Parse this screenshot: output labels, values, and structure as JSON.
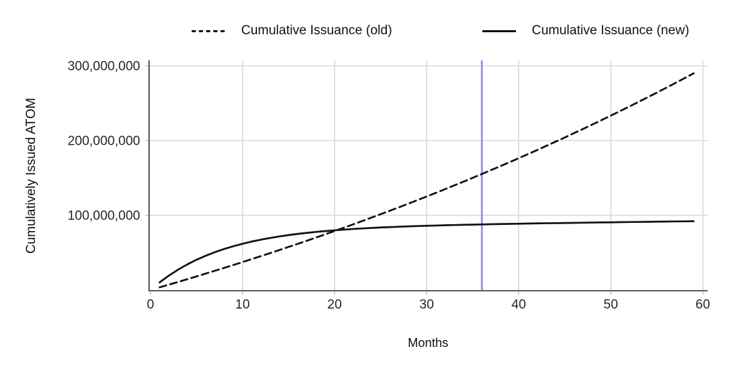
{
  "colors": {
    "background": "#ffffff",
    "line": "#111111",
    "grid": "#d8d8d8",
    "spine": "#444444",
    "tick": "#c9c9c9",
    "text": "#262626",
    "milestone_line": "#a294e8"
  },
  "chart_data": {
    "type": "line",
    "title": "",
    "xlabel": "Months",
    "ylabel": "Cumulatively Issued ATOM",
    "unit": "ATOM",
    "values_unit": "million ATOM",
    "grid": true,
    "legend_position": "top",
    "x_ticks": [
      0,
      10,
      20,
      30,
      40,
      50,
      60
    ],
    "y_ticks": [
      100000000,
      200000000,
      300000000
    ],
    "xlim": [
      0,
      60.6
    ],
    "ylim": [
      0,
      307000000
    ],
    "x": [
      1,
      2,
      3,
      4,
      5,
      6,
      7,
      8,
      9,
      10,
      11,
      12,
      13,
      14,
      15,
      16,
      17,
      18,
      19,
      20,
      21,
      22,
      23,
      24,
      25,
      26,
      27,
      28,
      29,
      30,
      31,
      32,
      33,
      34,
      35,
      36,
      37,
      38,
      39,
      40,
      41,
      42,
      43,
      44,
      45,
      46,
      47,
      48,
      49,
      50,
      51,
      52,
      53,
      54,
      55,
      56,
      57,
      58,
      59
    ],
    "series": [
      {
        "name": "Cumulative Issuance (old)",
        "line_style": "dashed",
        "color": "#111111",
        "values_million_atom": [
          3.6,
          7.2,
          10.8,
          14.5,
          18.2,
          22.0,
          25.8,
          29.6,
          33.5,
          37.4,
          41.4,
          45.4,
          49.4,
          53.5,
          57.7,
          61.8,
          66.0,
          70.3,
          74.6,
          79.0,
          83.4,
          87.8,
          92.3,
          96.9,
          101.5,
          106.1,
          110.8,
          115.5,
          120.3,
          125.1,
          130.0,
          135.0,
          140.0,
          145.0,
          150.1,
          155.3,
          160.5,
          165.7,
          171.0,
          176.4,
          181.8,
          187.3,
          192.9,
          198.5,
          204.1,
          209.9,
          215.6,
          221.5,
          227.4,
          233.4,
          239.4,
          245.5,
          251.6,
          257.9,
          264.1,
          270.5,
          276.9,
          283.4,
          290.0
        ]
      },
      {
        "name": "Cumulative Issuance (new)",
        "line_style": "solid",
        "color": "#111111",
        "values_million_atom": [
          10.3,
          19.3,
          27.3,
          34.3,
          40.5,
          45.9,
          50.7,
          54.9,
          58.6,
          61.9,
          64.9,
          67.4,
          69.7,
          71.7,
          73.5,
          75.1,
          76.5,
          77.8,
          78.9,
          79.9,
          80.8,
          81.7,
          82.4,
          83.1,
          83.7,
          84.2,
          84.7,
          85.2,
          85.6,
          86.0,
          86.3,
          86.7,
          87.0,
          87.3,
          87.5,
          87.8,
          88.1,
          88.3,
          88.5,
          88.7,
          89.0,
          89.2,
          89.4,
          89.5,
          89.7,
          89.9,
          90.1,
          90.3,
          90.5,
          90.6,
          90.8,
          91.0,
          91.1,
          91.3,
          91.5,
          91.6,
          91.8,
          91.9,
          92.1
        ]
      }
    ],
    "annotations": [
      {
        "type": "vline",
        "x": 36,
        "color": "#a294e8"
      }
    ]
  }
}
